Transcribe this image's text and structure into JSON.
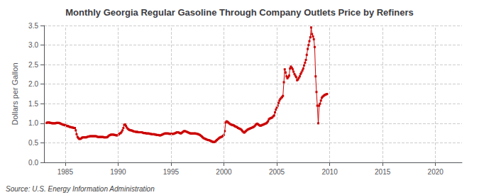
{
  "chart_data": {
    "type": "line",
    "title": "Monthly Georgia Regular Gasoline Through Company Outlets Price by Refiners",
    "ylabel": "Dollars per Gallon",
    "annotations": [
      "Source: U.S. Energy Information Administration"
    ],
    "color": "#cc0000",
    "marker": "square",
    "grid": true,
    "xlim": [
      1983.0,
      2022.5
    ],
    "ylim": [
      0.0,
      3.5
    ],
    "xticks": [
      1985,
      1990,
      1995,
      2000,
      2005,
      2010,
      2015,
      2020
    ],
    "yticks": [
      {
        "value": 0,
        "label": "0.0"
      },
      0.5,
      {
        "value": 1,
        "label": "1.0"
      },
      1.5,
      {
        "value": 2,
        "label": "2.0"
      },
      2.5,
      {
        "value": 3,
        "label": "3.0"
      },
      3.5
    ],
    "x": [
      1983.25,
      1983.33,
      1983.42,
      1983.5,
      1983.58,
      1983.67,
      1983.75,
      1983.83,
      1983.92,
      1984.0,
      1984.08,
      1984.17,
      1984.25,
      1984.33,
      1984.42,
      1984.5,
      1984.58,
      1984.67,
      1984.75,
      1984.83,
      1984.92,
      1985.0,
      1985.08,
      1985.17,
      1985.25,
      1985.33,
      1985.42,
      1985.5,
      1985.58,
      1985.67,
      1985.75,
      1985.83,
      1985.92,
      1986.0,
      1986.08,
      1986.17,
      1986.25,
      1986.33,
      1986.42,
      1986.5,
      1986.58,
      1986.67,
      1986.75,
      1986.83,
      1986.92,
      1987.0,
      1987.08,
      1987.17,
      1987.25,
      1987.33,
      1987.42,
      1987.5,
      1987.58,
      1987.67,
      1987.75,
      1987.83,
      1987.92,
      1988.0,
      1988.08,
      1988.17,
      1988.25,
      1988.33,
      1988.42,
      1988.5,
      1988.58,
      1988.67,
      1988.75,
      1988.83,
      1988.92,
      1989.0,
      1989.08,
      1989.17,
      1989.25,
      1989.33,
      1989.42,
      1989.5,
      1989.58,
      1989.67,
      1989.75,
      1989.83,
      1989.92,
      1990.0,
      1990.08,
      1990.17,
      1990.25,
      1990.33,
      1990.42,
      1990.5,
      1990.58,
      1990.67,
      1990.75,
      1990.83,
      1990.92,
      1991.0,
      1991.08,
      1991.17,
      1991.25,
      1991.33,
      1991.42,
      1991.5,
      1991.58,
      1991.67,
      1991.75,
      1991.83,
      1991.92,
      1992.0,
      1992.08,
      1992.17,
      1992.25,
      1992.33,
      1992.42,
      1992.5,
      1992.58,
      1992.67,
      1992.75,
      1992.83,
      1992.92,
      1993.0,
      1993.08,
      1993.17,
      1993.25,
      1993.33,
      1993.42,
      1993.5,
      1993.58,
      1993.67,
      1993.75,
      1993.83,
      1993.92,
      1994.0,
      1994.08,
      1994.17,
      1994.25,
      1994.33,
      1994.42,
      1994.5,
      1994.58,
      1994.67,
      1994.75,
      1994.83,
      1994.92,
      1995.0,
      1995.08,
      1995.17,
      1995.25,
      1995.33,
      1995.42,
      1995.5,
      1995.58,
      1995.67,
      1995.75,
      1995.83,
      1995.92,
      1996.0,
      1996.08,
      1996.17,
      1996.25,
      1996.33,
      1996.42,
      1996.5,
      1996.58,
      1996.67,
      1996.75,
      1996.83,
      1996.92,
      1997.0,
      1997.08,
      1997.17,
      1997.25,
      1997.33,
      1997.42,
      1997.5,
      1997.58,
      1997.67,
      1997.75,
      1997.83,
      1997.92,
      1998.0,
      1998.08,
      1998.17,
      1998.25,
      1998.33,
      1998.42,
      1998.5,
      1998.58,
      1998.67,
      1998.75,
      1998.83,
      1998.92,
      1999.0,
      1999.08,
      1999.17,
      1999.25,
      1999.33,
      1999.42,
      1999.5,
      1999.58,
      1999.67,
      1999.75,
      1999.83,
      1999.92,
      2000.0,
      2000.08,
      2000.17,
      2000.25,
      2000.33,
      2000.42,
      2000.5,
      2000.58,
      2000.67,
      2000.75,
      2000.83,
      2000.92,
      2001.0,
      2001.08,
      2001.17,
      2001.25,
      2001.33,
      2001.42,
      2001.5,
      2001.58,
      2001.67,
      2001.75,
      2001.83,
      2001.92,
      2002.0,
      2002.08,
      2002.17,
      2002.25,
      2002.33,
      2002.42,
      2002.5,
      2002.58,
      2002.67,
      2002.75,
      2002.83,
      2002.92,
      2003.0,
      2003.08,
      2003.17,
      2003.25,
      2003.33,
      2003.42,
      2003.5,
      2003.58,
      2003.67,
      2003.75,
      2003.83,
      2003.92,
      2004.0,
      2004.08,
      2004.17,
      2004.25,
      2004.33,
      2004.42,
      2004.5,
      2004.58,
      2004.67,
      2004.75,
      2004.83,
      2004.92,
      2005.0,
      2005.08,
      2005.17,
      2005.25,
      2005.33,
      2005.42,
      2005.5,
      2005.58,
      2005.67,
      2005.75,
      2005.83,
      2005.92,
      2006.0,
      2006.08,
      2006.17,
      2006.25,
      2006.33,
      2006.42,
      2006.5,
      2006.58,
      2006.67,
      2006.75,
      2006.83,
      2006.92,
      2007.0,
      2007.08,
      2007.17,
      2007.25,
      2007.33,
      2007.42,
      2007.5,
      2007.58,
      2007.67,
      2007.75,
      2007.83,
      2007.92,
      2008.0,
      2008.08,
      2008.17,
      2008.25,
      2008.33,
      2008.42,
      2008.5,
      2008.58,
      2008.67,
      2008.75,
      2008.83,
      2008.92,
      2009.0,
      2009.08,
      2009.17,
      2009.25,
      2009.33,
      2009.42,
      2009.5,
      2009.58,
      2009.67,
      2009.75
    ],
    "values": [
      1.01,
      1.02,
      1.02,
      1.02,
      1.01,
      1.01,
      1.0,
      1.0,
      1.0,
      1.0,
      1.0,
      1.01,
      1.01,
      1.01,
      1.01,
      1.0,
      0.99,
      0.98,
      0.97,
      0.96,
      0.96,
      0.95,
      0.94,
      0.93,
      0.93,
      0.92,
      0.91,
      0.9,
      0.9,
      0.89,
      0.89,
      0.88,
      0.88,
      0.82,
      0.72,
      0.65,
      0.62,
      0.6,
      0.6,
      0.61,
      0.63,
      0.64,
      0.64,
      0.64,
      0.64,
      0.64,
      0.65,
      0.66,
      0.66,
      0.67,
      0.67,
      0.67,
      0.67,
      0.67,
      0.67,
      0.67,
      0.67,
      0.66,
      0.65,
      0.65,
      0.65,
      0.65,
      0.65,
      0.65,
      0.65,
      0.64,
      0.64,
      0.64,
      0.64,
      0.65,
      0.67,
      0.69,
      0.7,
      0.71,
      0.71,
      0.71,
      0.71,
      0.7,
      0.7,
      0.69,
      0.69,
      0.7,
      0.72,
      0.74,
      0.75,
      0.78,
      0.82,
      0.88,
      0.96,
      0.97,
      0.93,
      0.89,
      0.86,
      0.84,
      0.83,
      0.82,
      0.82,
      0.81,
      0.8,
      0.79,
      0.79,
      0.78,
      0.78,
      0.78,
      0.77,
      0.77,
      0.77,
      0.77,
      0.77,
      0.76,
      0.75,
      0.75,
      0.75,
      0.74,
      0.74,
      0.74,
      0.74,
      0.73,
      0.73,
      0.72,
      0.72,
      0.72,
      0.72,
      0.71,
      0.71,
      0.7,
      0.7,
      0.7,
      0.69,
      0.69,
      0.7,
      0.71,
      0.72,
      0.73,
      0.74,
      0.74,
      0.74,
      0.74,
      0.74,
      0.73,
      0.73,
      0.73,
      0.73,
      0.73,
      0.73,
      0.74,
      0.75,
      0.76,
      0.77,
      0.77,
      0.76,
      0.75,
      0.74,
      0.75,
      0.77,
      0.79,
      0.8,
      0.8,
      0.79,
      0.78,
      0.77,
      0.76,
      0.75,
      0.74,
      0.74,
      0.74,
      0.74,
      0.74,
      0.74,
      0.74,
      0.73,
      0.73,
      0.72,
      0.71,
      0.7,
      0.68,
      0.66,
      0.64,
      0.62,
      0.61,
      0.6,
      0.59,
      0.58,
      0.57,
      0.57,
      0.56,
      0.55,
      0.54,
      0.53,
      0.52,
      0.52,
      0.53,
      0.55,
      0.57,
      0.59,
      0.61,
      0.63,
      0.64,
      0.65,
      0.66,
      0.68,
      0.7,
      0.8,
      1.02,
      1.05,
      1.04,
      1.02,
      1.0,
      0.98,
      0.97,
      0.96,
      0.95,
      0.95,
      0.93,
      0.92,
      0.91,
      0.9,
      0.88,
      0.87,
      0.86,
      0.85,
      0.83,
      0.8,
      0.78,
      0.76,
      0.78,
      0.8,
      0.82,
      0.84,
      0.85,
      0.86,
      0.87,
      0.88,
      0.89,
      0.9,
      0.91,
      0.93,
      0.96,
      0.98,
      0.99,
      0.97,
      0.95,
      0.94,
      0.94,
      0.95,
      0.96,
      0.97,
      0.98,
      0.99,
      1.0,
      1.02,
      1.05,
      1.1,
      1.12,
      1.13,
      1.14,
      1.15,
      1.18,
      1.2,
      1.28,
      1.35,
      1.4,
      1.45,
      1.52,
      1.58,
      1.62,
      1.65,
      1.67,
      1.7,
      2.05,
      2.38,
      2.3,
      2.2,
      2.15,
      2.18,
      2.22,
      2.4,
      2.45,
      2.42,
      2.38,
      2.32,
      2.26,
      2.22,
      2.18,
      2.1,
      2.12,
      2.16,
      2.2,
      2.26,
      2.3,
      2.35,
      2.4,
      2.48,
      2.55,
      2.62,
      2.75,
      2.9,
      3.0,
      3.1,
      3.2,
      3.45,
      3.28,
      3.22,
      3.15,
      2.95,
      2.2,
      1.8,
      1.45,
      1.0,
      1.45,
      1.5,
      1.58,
      1.65,
      1.68,
      1.7,
      1.72,
      1.73,
      1.74,
      1.75
    ]
  }
}
